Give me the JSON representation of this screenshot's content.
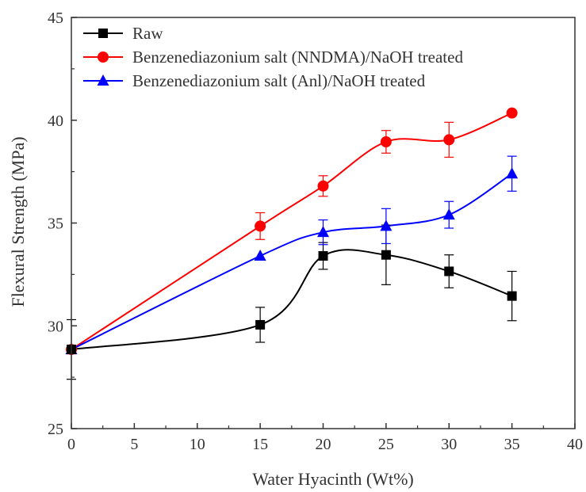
{
  "chart_data": {
    "type": "line",
    "title": "",
    "xlabel": "Water Hyacinth (Wt%)",
    "ylabel": "Flexural Strength (MPa)",
    "xlim": [
      0,
      40
    ],
    "ylim": [
      25,
      45
    ],
    "xticks": [
      0,
      5,
      10,
      15,
      20,
      25,
      30,
      35,
      40
    ],
    "yticks": [
      25,
      30,
      35,
      40,
      45
    ],
    "grid": false,
    "legend_position": "top-left",
    "series": [
      {
        "name": "Raw",
        "color": "#000000",
        "marker": "square",
        "x": [
          0,
          15,
          20,
          25,
          30,
          35
        ],
        "y": [
          28.85,
          30.05,
          33.4,
          33.45,
          32.65,
          31.45
        ],
        "err": [
          1.45,
          0.85,
          0.65,
          1.45,
          0.8,
          1.2
        ]
      },
      {
        "name": "Benzenediazonium salt (NNDMA)/NaOH treated",
        "color": "#ff0000",
        "marker": "circle",
        "x": [
          0,
          15,
          20,
          25,
          30,
          35
        ],
        "y": [
          28.85,
          34.85,
          36.8,
          38.95,
          39.05,
          40.35
        ],
        "err": [
          0.0,
          0.65,
          0.5,
          0.55,
          0.85,
          0.0
        ]
      },
      {
        "name": "Benzenediazonium salt (Anl)/NaOH treated",
        "color": "#0000ff",
        "marker": "triangle",
        "x": [
          0,
          15,
          20,
          25,
          30,
          35
        ],
        "y": [
          28.85,
          33.4,
          34.55,
          34.85,
          35.4,
          37.4
        ],
        "err": [
          0.0,
          0.0,
          0.6,
          0.85,
          0.65,
          0.85
        ]
      }
    ]
  }
}
